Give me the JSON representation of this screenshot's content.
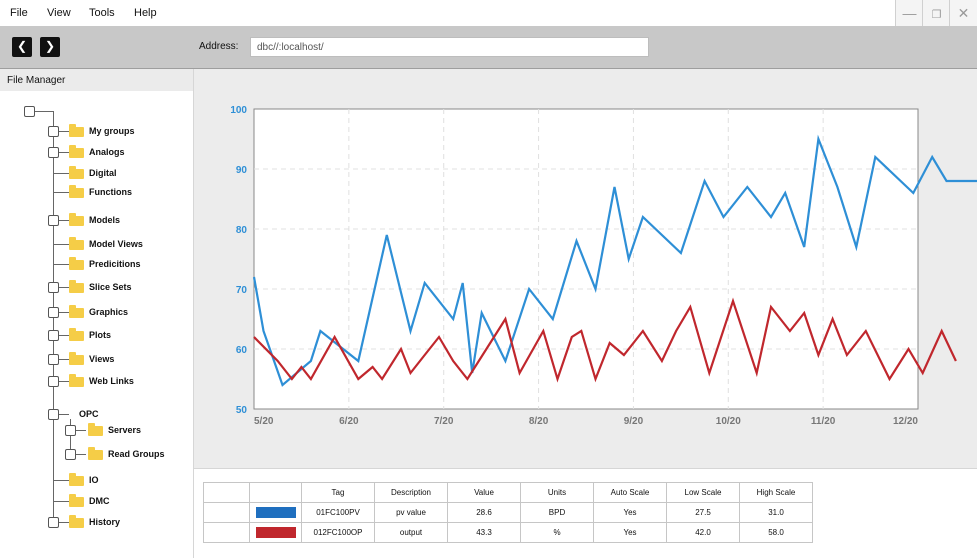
{
  "menu": [
    "File",
    "View",
    "Tools",
    "Help"
  ],
  "window_controls": [
    "minimize-icon",
    "restore-icon",
    "close-icon"
  ],
  "toolbar": {
    "back_icon": "chevron-left-icon",
    "forward_icon": "chevron-right-icon",
    "address_label": "Address:",
    "address_value": "dbc//:localhost/"
  },
  "sidebar": {
    "title": "File Manager",
    "items": [
      {
        "label": "My groups",
        "level": 1,
        "expander": true
      },
      {
        "label": "Analogs",
        "level": 1,
        "expander": true
      },
      {
        "label": "Digital",
        "level": 1,
        "expander": false
      },
      {
        "label": "Functions",
        "level": 1,
        "expander": false
      },
      {
        "label": "Models",
        "level": 1,
        "expander": true
      },
      {
        "label": "Model Views",
        "level": 1,
        "expander": false
      },
      {
        "label": "Predicitions",
        "level": 1,
        "expander": false
      },
      {
        "label": "Slice Sets",
        "level": 1,
        "expander": true
      },
      {
        "label": "Graphics",
        "level": 1,
        "expander": true
      },
      {
        "label": "Plots",
        "level": 1,
        "expander": true
      },
      {
        "label": "Views",
        "level": 1,
        "expander": true
      },
      {
        "label": "Web Links",
        "level": 1,
        "expander": true
      },
      {
        "label": "OPC",
        "level": 1,
        "expander": true,
        "folder": false
      },
      {
        "label": "Servers",
        "level": 2,
        "expander": true
      },
      {
        "label": "Read Groups",
        "level": 2,
        "expander": true
      },
      {
        "label": "IO",
        "level": 1,
        "expander": false
      },
      {
        "label": "DMC",
        "level": 1,
        "expander": false
      },
      {
        "label": "History",
        "level": 1,
        "expander": true
      }
    ]
  },
  "chart_data": {
    "type": "line",
    "title": "",
    "xlabel": "",
    "ylabel": "",
    "ylim": [
      50,
      100
    ],
    "yticks": [
      "100",
      "90",
      "80",
      "70",
      "60",
      "50"
    ],
    "xticks": [
      "5/20",
      "6/20",
      "7/20",
      "8/20",
      "9/20",
      "10/20",
      "11/20",
      "12/20"
    ],
    "grid": true,
    "series": [
      {
        "color": "#2e8fd6",
        "x": [
          0,
          0.1,
          0.3,
          0.6,
          0.7,
          1.1,
          1.4,
          1.65,
          1.8,
          2.1,
          2.2,
          2.3,
          2.4,
          2.65,
          2.9,
          3.15,
          3.4,
          3.6,
          3.8,
          3.95,
          4.1,
          4.5,
          4.75,
          4.95,
          5.2,
          5.45,
          5.6,
          5.8,
          5.95,
          6.15,
          6.35,
          6.55,
          6.95,
          7.15,
          7.3,
          7.45,
          7.7
        ],
        "y": [
          72,
          63,
          54,
          58,
          63,
          58,
          79,
          63,
          71,
          65,
          71,
          56,
          66,
          58,
          70,
          65,
          78,
          70,
          87,
          75,
          82,
          76,
          88,
          82,
          87,
          82,
          86,
          77,
          95,
          87,
          77,
          92,
          86,
          92,
          88,
          88,
          88
        ]
      },
      {
        "color": "#c0272d",
        "x": [
          0,
          0.25,
          0.4,
          0.5,
          0.6,
          0.85,
          1.1,
          1.25,
          1.35,
          1.55,
          1.65,
          1.8,
          1.95,
          2.1,
          2.25,
          2.45,
          2.65,
          2.8,
          3.05,
          3.2,
          3.35,
          3.45,
          3.6,
          3.75,
          3.9,
          4.1,
          4.3,
          4.45,
          4.6,
          4.8,
          5.05,
          5.3,
          5.45,
          5.65,
          5.8,
          5.95,
          6.1,
          6.25,
          6.45,
          6.7,
          6.9,
          7.05,
          7.25,
          7.4
        ],
        "y": [
          62,
          58,
          55,
          57,
          55,
          62,
          55,
          57,
          55,
          60,
          56,
          59,
          62,
          58,
          55,
          60,
          65,
          56,
          63,
          55,
          62,
          63,
          55,
          61,
          59,
          63,
          58,
          63,
          67,
          56,
          68,
          56,
          67,
          63,
          66,
          59,
          65,
          59,
          63,
          55,
          60,
          56,
          63,
          58
        ]
      }
    ]
  },
  "table": {
    "headers": [
      "",
      "Tag",
      "Description",
      "Value",
      "Units",
      "Auto Scale",
      "Low Scale",
      "High Scale"
    ],
    "rows": [
      {
        "color": "#1f6fbf",
        "tag": "01FC100PV",
        "description": "pv value",
        "value": "28.6",
        "units": "BPD",
        "auto_scale": "Yes",
        "low_scale": "27.5",
        "high_scale": "31.0"
      },
      {
        "color": "#c0272d",
        "tag": "012FC100OP",
        "description": "output",
        "value": "43.3",
        "units": "%",
        "auto_scale": "Yes",
        "low_scale": "42.0",
        "high_scale": "58.0"
      }
    ]
  }
}
